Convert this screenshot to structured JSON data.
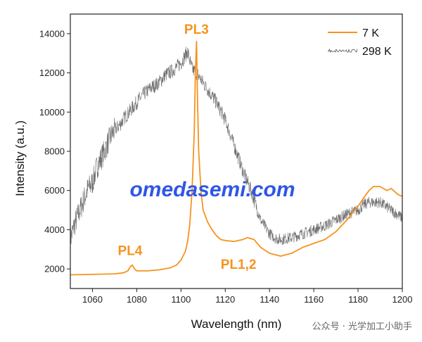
{
  "chart_data": {
    "type": "line",
    "xlabel": "Wavelength (nm)",
    "ylabel": "Intensity (a.u.)",
    "xlim": [
      1050,
      1200
    ],
    "ylim": [
      1000,
      15000
    ],
    "xticks": [
      1060,
      1080,
      1100,
      1120,
      1140,
      1160,
      1180,
      1200
    ],
    "yticks": [
      2000,
      4000,
      6000,
      8000,
      10000,
      12000,
      14000
    ],
    "grid": false,
    "legend_position": "top-right",
    "series": [
      {
        "name": "7 K",
        "color": "#f7931e",
        "x": [
          1050,
          1060,
          1070,
          1074,
          1076,
          1077,
          1078,
          1079,
          1080,
          1085,
          1090,
          1095,
          1098,
          1100,
          1102,
          1103,
          1104,
          1105,
          1106,
          1106.5,
          1107,
          1107.5,
          1108,
          1109,
          1110,
          1112,
          1114,
          1116,
          1118,
          1120,
          1124,
          1128,
          1130,
          1133,
          1136,
          1140,
          1145,
          1150,
          1155,
          1160,
          1165,
          1170,
          1175,
          1180,
          1183,
          1185,
          1187,
          1190,
          1193,
          1195,
          1198,
          1200
        ],
        "y": [
          1700,
          1720,
          1750,
          1800,
          1900,
          2100,
          2200,
          2000,
          1900,
          1900,
          1950,
          2050,
          2200,
          2450,
          2900,
          3400,
          4300,
          6000,
          9000,
          12000,
          13600,
          10500,
          8000,
          6000,
          5000,
          4400,
          4000,
          3700,
          3500,
          3450,
          3400,
          3500,
          3600,
          3500,
          3100,
          2800,
          2650,
          2800,
          3100,
          3300,
          3500,
          3900,
          4500,
          5200,
          5700,
          6000,
          6200,
          6200,
          6000,
          6100,
          5800,
          5700
        ]
      },
      {
        "name": "298 K",
        "color": "#555555",
        "x": [
          1050,
          1052,
          1055,
          1058,
          1060,
          1062,
          1065,
          1068,
          1070,
          1072,
          1075,
          1078,
          1080,
          1083,
          1086,
          1090,
          1093,
          1096,
          1100,
          1102,
          1103,
          1104,
          1105,
          1107,
          1110,
          1113,
          1116,
          1120,
          1124,
          1128,
          1132,
          1136,
          1140,
          1143,
          1145,
          1150,
          1155,
          1160,
          1165,
          1170,
          1175,
          1180,
          1183,
          1185,
          1190,
          1195,
          1200
        ],
        "y": [
          3500,
          4300,
          5200,
          6100,
          6400,
          7200,
          7900,
          8700,
          9100,
          9300,
          9800,
          10200,
          10500,
          10900,
          11200,
          11500,
          11900,
          12100,
          12500,
          12900,
          13100,
          12600,
          12200,
          12000,
          11500,
          11000,
          10500,
          9600,
          8300,
          7000,
          5900,
          4500,
          3800,
          3550,
          3500,
          3600,
          3800,
          4000,
          4200,
          4500,
          4800,
          5000,
          5300,
          5400,
          5400,
          5000,
          4600
        ]
      }
    ],
    "annotations": [
      {
        "text": "PL3",
        "x": 1107,
        "y": 14000
      },
      {
        "text": "PL4",
        "x": 1077,
        "y": 2700
      },
      {
        "text": "PL1,2",
        "x": 1126,
        "y": 2000
      }
    ]
  },
  "watermark": "omedasemi.com",
  "credit": "公众号 · 光学加工小助手"
}
